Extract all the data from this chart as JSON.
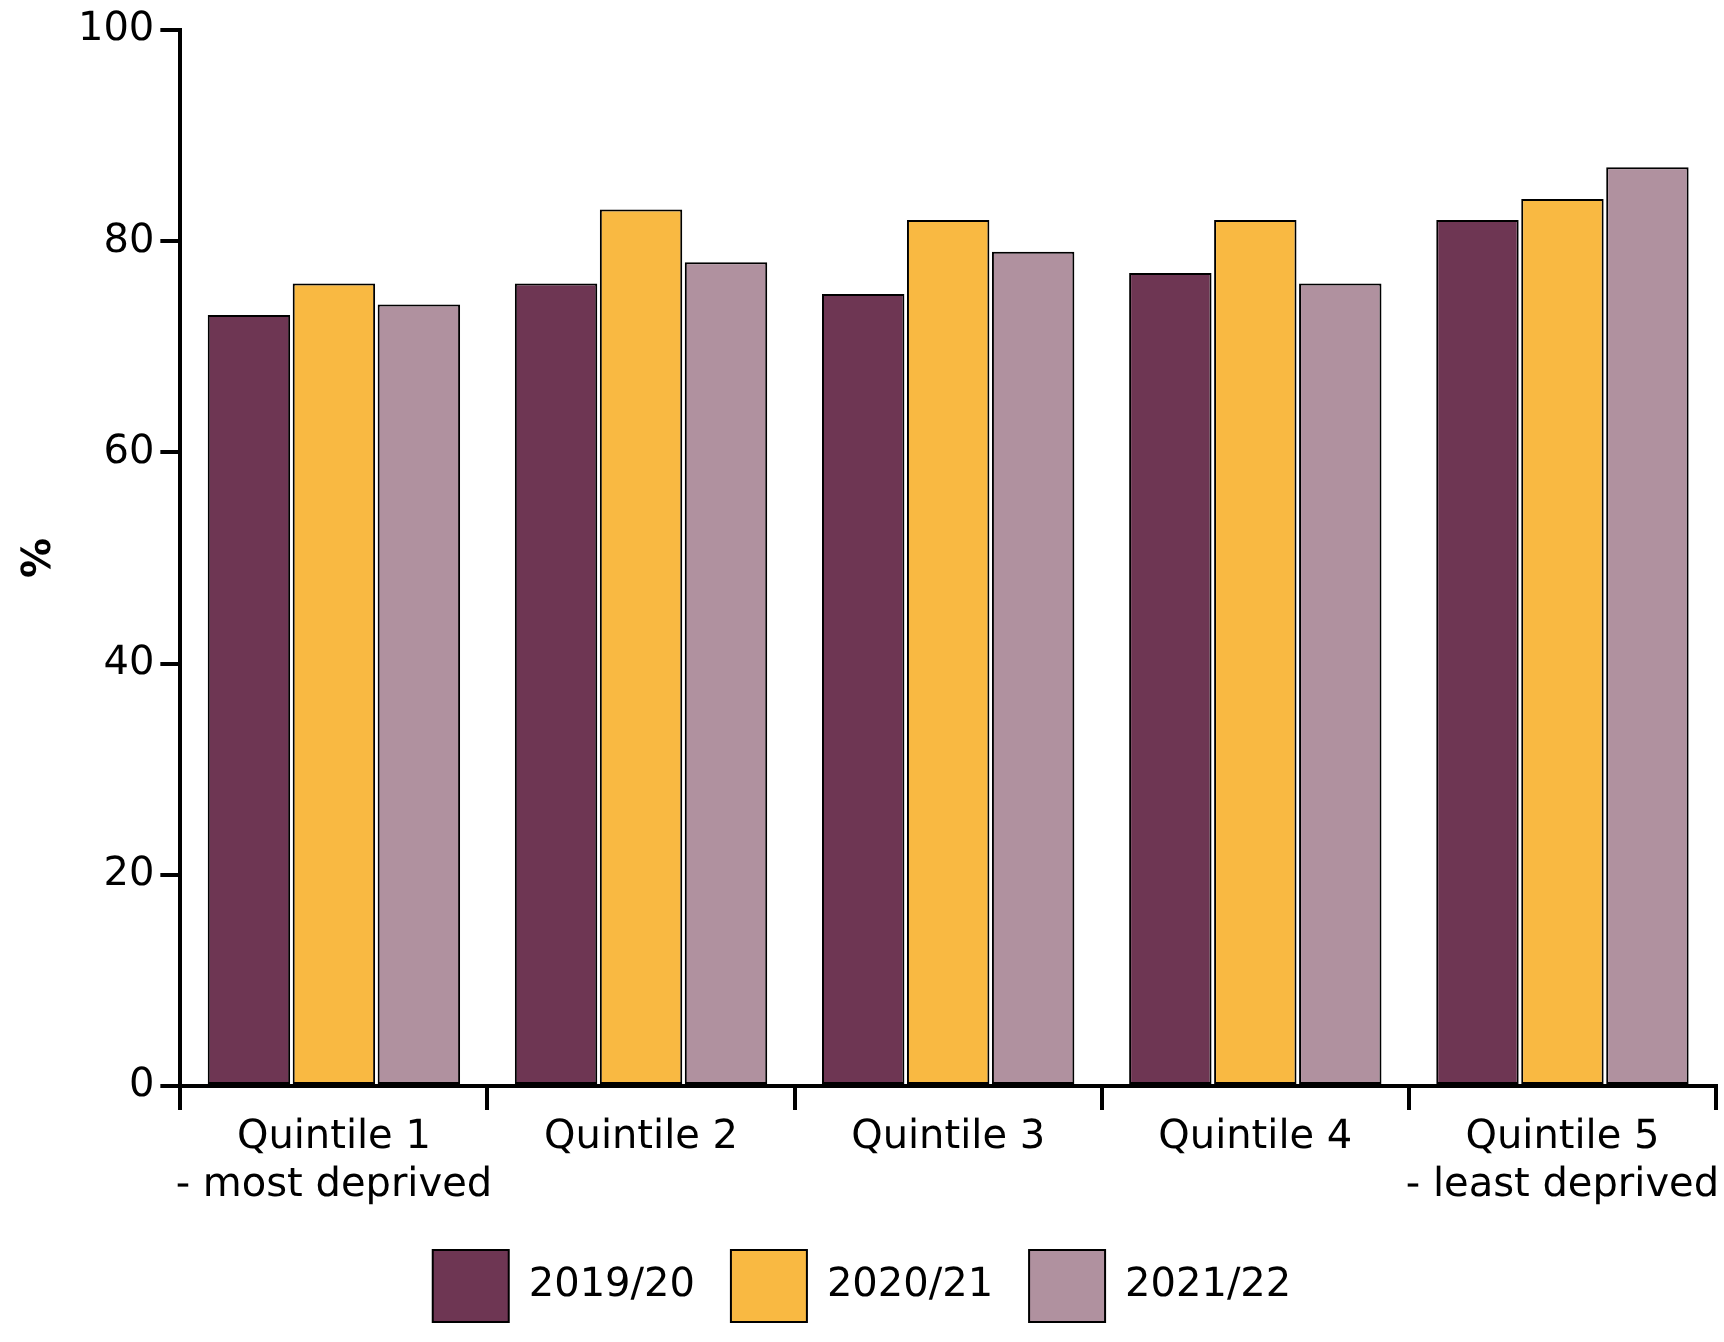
{
  "chart_data": {
    "type": "bar",
    "ylabel": "%",
    "categories": [
      "Quintile 1\n- most deprived",
      "Quintile 2",
      "Quintile 3",
      "Quintile 4",
      "Quintile 5\n- least deprived"
    ],
    "series": [
      {
        "name": "2019/20",
        "color": "#6e3653",
        "values": [
          73,
          76,
          75,
          77,
          82
        ]
      },
      {
        "name": "2020/21",
        "color": "#f9b942",
        "values": [
          76,
          83,
          82,
          82,
          84
        ]
      },
      {
        "name": "2021/22",
        "color": "#b0919f",
        "values": [
          74,
          78,
          79,
          76,
          87
        ]
      }
    ],
    "ylim": [
      0,
      100
    ],
    "yticks": [
      0,
      20,
      40,
      60,
      80,
      100
    ],
    "grid": false,
    "legend": "bottom"
  }
}
